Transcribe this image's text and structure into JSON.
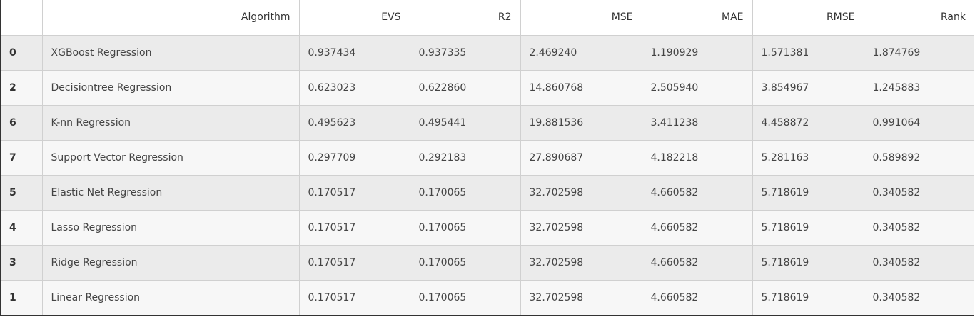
{
  "table": {
    "columns": [
      "",
      "Algorithm",
      "EVS",
      "R2",
      "MSE",
      "MAE",
      "RMSE",
      "Rank"
    ],
    "rows": [
      {
        "index": "0",
        "algorithm": "XGBoost Regression",
        "evs": "0.937434",
        "r2": "0.937335",
        "mse": "2.469240",
        "mae": "1.190929",
        "rmse": "1.571381",
        "rank": "1.874769"
      },
      {
        "index": "2",
        "algorithm": "Decisiontree Regression",
        "evs": "0.623023",
        "r2": "0.622860",
        "mse": "14.860768",
        "mae": "2.505940",
        "rmse": "3.854967",
        "rank": "1.245883"
      },
      {
        "index": "6",
        "algorithm": "K-nn Regression",
        "evs": "0.495623",
        "r2": "0.495441",
        "mse": "19.881536",
        "mae": "3.411238",
        "rmse": "4.458872",
        "rank": "0.991064"
      },
      {
        "index": "7",
        "algorithm": "Support Vector Regression",
        "evs": "0.297709",
        "r2": "0.292183",
        "mse": "27.890687",
        "mae": "4.182218",
        "rmse": "5.281163",
        "rank": "0.589892"
      },
      {
        "index": "5",
        "algorithm": "Elastic Net Regression",
        "evs": "0.170517",
        "r2": "0.170065",
        "mse": "32.702598",
        "mae": "4.660582",
        "rmse": "5.718619",
        "rank": "0.340582"
      },
      {
        "index": "4",
        "algorithm": "Lasso Regression",
        "evs": "0.170517",
        "r2": "0.170065",
        "mse": "32.702598",
        "mae": "4.660582",
        "rmse": "5.718619",
        "rank": "0.340582"
      },
      {
        "index": "3",
        "algorithm": "Ridge Regression",
        "evs": "0.170517",
        "r2": "0.170065",
        "mse": "32.702598",
        "mae": "4.660582",
        "rmse": "5.718619",
        "rank": "0.340582"
      },
      {
        "index": "1",
        "algorithm": "Linear Regression",
        "evs": "0.170517",
        "r2": "0.170065",
        "mse": "32.702598",
        "mae": "4.660582",
        "rmse": "5.718619",
        "rank": "0.340582"
      }
    ]
  }
}
